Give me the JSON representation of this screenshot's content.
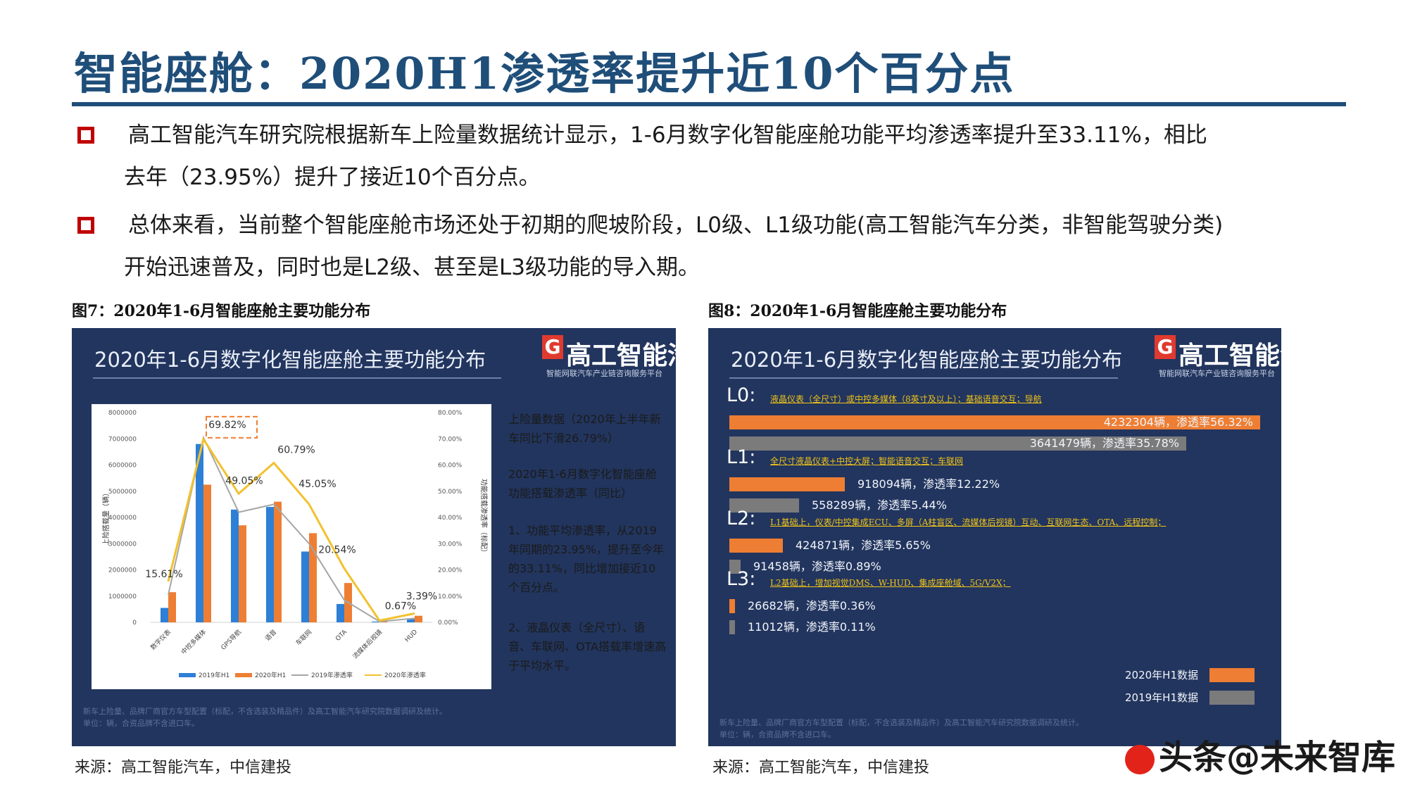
{
  "title": "智能座舱：2020H1渗透率提升近10个百分点",
  "bullets": [
    {
      "line1": "高工智能汽车研究院根据新车上险量数据统计显示，1-6月数字化智能座舱功能平均渗透率提升至33.11%，相比",
      "line2": "去年（23.95%）提升了接近10个百分点。"
    },
    {
      "line1": "总体来看，当前整个智能座舱市场还处于初期的爬坡阶段，L0级、L1级功能(高工智能汽车分类，非智能驾驶分类)",
      "line2": "开始迅速普及，同时也是L2级、甚至是L3级功能的导入期。"
    }
  ],
  "fig7": {
    "caption": "图7：2020年1-6月智能座舱主要功能分布",
    "panel_title": "2020年1-6月数字化智能座舱主要功能分布",
    "logo": {
      "mark": "G",
      "name": "高工智能汽车",
      "sub": "智能网联汽车产业链咨询服务平台"
    },
    "notes": [
      {
        "text": "上险量数据（2020年上半年新车同比下滑26.79%）",
        "color": "white"
      },
      {
        "text": "2020年1-6月数字化智能座舱功能搭载渗透率（同比）",
        "color": "gold"
      },
      {
        "text": "1、功能平均渗透率，从2019年同期的23.95%，提升至今年的33.11%，同比增加接近10个百分点。",
        "color": "white"
      },
      {
        "text": "2、液晶仪表（全尺寸）、语音、车联网、OTA搭载率增速高于平均水平。",
        "color": "gold"
      }
    ],
    "footnote": [
      "新车上险量、品牌厂商官方车型配置（标配，不含选装及精品件）及高工智能汽车研究院数据调研及统计。",
      "单位：辆，合资品牌不含进口车。"
    ],
    "source": "来源：高工智能汽车，中信建投"
  },
  "fig8": {
    "caption": "图8：2020年1-6月智能座舱主要功能分布",
    "panel_title": "2020年1-6月数字化智能座舱主要功能分布",
    "logo": {
      "mark": "G",
      "name": "高工智能汽车",
      "sub": "智能网联汽车产业链咨询服务平台"
    },
    "legend": {
      "h1": "2020年H1数据",
      "h19": "2019年H1数据"
    },
    "footnote": [
      "新车上险量、品牌厂商官方车型配置（标配，不含选装及精品件）及高工智能汽车研究院数据调研及统计。",
      "单位：辆，合资品牌不含进口车。"
    ],
    "source": "来源：高工智能汽车，中信建投"
  },
  "watermark": "头条@未来智库",
  "colors": {
    "title": "#1f4e79",
    "bullet": "#c00000",
    "panel": "#22355e",
    "blue_bar": "#2e7fd6",
    "orange_bar": "#ee7e33",
    "gray_line": "#a6a6a6",
    "gold_line": "#f2c12e",
    "gray_bar": "#7b7b7b",
    "highlight": "#f0c419"
  },
  "chart_data": [
    {
      "type": "bar",
      "title": "2020年1-6月数字化智能座舱主要功能分布",
      "categories": [
        "数字仪表",
        "中控多媒体",
        "GPS导航",
        "语音",
        "车联网",
        "OTA",
        "流媒体后视镜",
        "HUD"
      ],
      "ylabel": "上险搭载量（辆）",
      "y2label": "功能搭载渗透率（标配）",
      "ylim": [
        0,
        8000000
      ],
      "y2lim": [
        0,
        80
      ],
      "yticks": [
        "0",
        "1000000",
        "2000000",
        "3000000",
        "4000000",
        "5000000",
        "6000000",
        "7000000",
        "8000000"
      ],
      "y2ticks": [
        "0.00%",
        "10.00%",
        "20.00%",
        "30.00%",
        "40.00%",
        "50.00%",
        "60.00%",
        "70.00%",
        "80.00%"
      ],
      "series": [
        {
          "name": "2019年H1",
          "kind": "bar",
          "values": [
            550000,
            6800000,
            4300000,
            4400000,
            2700000,
            700000,
            30000,
            150000
          ]
        },
        {
          "name": "2020年H1",
          "kind": "bar",
          "values": [
            1150000,
            5250000,
            3700000,
            4600000,
            3400000,
            1500000,
            100000,
            250000
          ]
        },
        {
          "name": "2019年渗透率",
          "kind": "line",
          "axis": "y2",
          "values": [
            10.5,
            70.5,
            42,
            45,
            30,
            8.5,
            0.3,
            1.5
          ]
        },
        {
          "name": "2020年渗透率",
          "kind": "line",
          "axis": "y2",
          "values": [
            15.61,
            69.82,
            49.05,
            60.79,
            45.05,
            20.54,
            0.67,
            3.39
          ]
        }
      ],
      "annotations": [
        "15.61%",
        "69.82%",
        "49.05%",
        "60.79%",
        "45.05%",
        "20.54%",
        "0.67%",
        "3.39%"
      ],
      "highlight": "69.82%",
      "legend_position": "bottom",
      "grid": false
    },
    {
      "type": "bar",
      "orientation": "horizontal",
      "title": "2020年1-6月数字化智能座舱主要功能分布",
      "groups": [
        {
          "level": "L0:",
          "desc": "液晶仪表（全尺寸）或中控多媒体（8英寸及以上）；基础语音交互；导航",
          "h1": {
            "value": 4232304,
            "label": "4232304辆，渗透率56.32%"
          },
          "h19": {
            "value": 3641479,
            "label": "3641479辆，渗透率35.78%"
          }
        },
        {
          "level": "L1:",
          "desc": "全尺寸液晶仪表+中控大屏；智能语音交互；车联网",
          "h1": {
            "value": 918094,
            "label": "918094辆，渗透率12.22%"
          },
          "h19": {
            "value": 558289,
            "label": "558289辆，渗透率5.44%"
          }
        },
        {
          "level": "L2:",
          "desc": "L1基础上，仪表/中控集成ECU、多屏（A柱盲区、流媒体后视镜）互动、互联网生态、OTA、远程控制；",
          "h1": {
            "value": 424871,
            "label": "424871辆，渗透率5.65%"
          },
          "h19": {
            "value": 91458,
            "label": "91458辆，渗透率0.89%"
          }
        },
        {
          "level": "L3:",
          "desc": "L2基础上，增加视觉DMS、W-HUD、集成座舱域、5G/V2X；",
          "h1": {
            "value": 26682,
            "label": "26682辆，渗透率0.36%"
          },
          "h19": {
            "value": 11012,
            "label": "11012辆，渗透率0.11%"
          }
        }
      ],
      "series": [
        {
          "name": "2020年H1数据"
        },
        {
          "name": "2019年H1数据"
        }
      ],
      "legend_position": "bottom-right"
    }
  ]
}
